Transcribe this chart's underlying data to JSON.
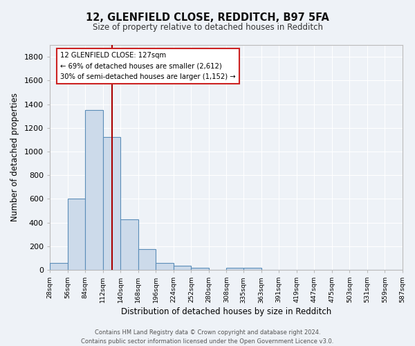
{
  "title_line1": "12, GLENFIELD CLOSE, REDDITCH, B97 5FA",
  "title_line2": "Size of property relative to detached houses in Redditch",
  "xlabel": "Distribution of detached houses by size in Redditch",
  "ylabel": "Number of detached properties",
  "bar_color": "#ccdaea",
  "bar_edge_color": "#5b8db8",
  "background_color": "#eef2f7",
  "grid_color": "#ffffff",
  "vline_x": 127,
  "vline_color": "#aa0000",
  "annotation_text": "12 GLENFIELD CLOSE: 127sqm\n← 69% of detached houses are smaller (2,612)\n30% of semi-detached houses are larger (1,152) →",
  "annotation_box_color": "#ffffff",
  "annotation_box_edge": "#cc2222",
  "footer_text": "Contains HM Land Registry data © Crown copyright and database right 2024.\nContains public sector information licensed under the Open Government Licence v3.0.",
  "bin_edges": [
    28,
    56,
    84,
    112,
    140,
    168,
    196,
    224,
    252,
    280,
    308,
    335,
    363,
    391,
    419,
    447,
    475,
    503,
    531,
    559,
    587
  ],
  "counts": [
    57,
    600,
    1350,
    1120,
    425,
    175,
    60,
    38,
    15,
    0,
    17,
    17,
    0,
    0,
    0,
    0,
    0,
    0,
    0,
    0
  ],
  "ylim": [
    0,
    1900
  ],
  "yticks": [
    0,
    200,
    400,
    600,
    800,
    1000,
    1200,
    1400,
    1600,
    1800
  ],
  "tick_labels": [
    "28sqm",
    "56sqm",
    "84sqm",
    "112sqm",
    "140sqm",
    "168sqm",
    "196sqm",
    "224sqm",
    "252sqm",
    "280sqm",
    "308sqm",
    "335sqm",
    "363sqm",
    "391sqm",
    "419sqm",
    "447sqm",
    "475sqm",
    "503sqm",
    "531sqm",
    "559sqm",
    "587sqm"
  ]
}
